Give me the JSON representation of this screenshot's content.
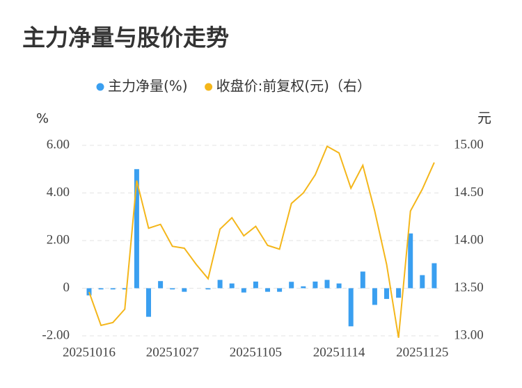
{
  "chart_data": {
    "type": "bar-line",
    "title": "主力净量与股价走势",
    "y_label": "%",
    "y2_label": "元",
    "categories": [
      "20251016",
      null,
      null,
      null,
      null,
      null,
      null,
      "20251027",
      null,
      null,
      null,
      null,
      null,
      null,
      "20251105",
      null,
      null,
      null,
      null,
      null,
      null,
      "20251114",
      null,
      null,
      null,
      null,
      null,
      null,
      "20251125",
      null
    ],
    "series": [
      {
        "name": "主力净量(%)",
        "color": "#3a9ff0",
        "kind": "bar",
        "values": [
          -0.3,
          -0.05,
          -0.05,
          -0.05,
          5.0,
          -1.2,
          0.3,
          -0.05,
          -0.15,
          0,
          -0.05,
          0.35,
          0.2,
          -0.18,
          0.28,
          -0.15,
          -0.15,
          0.27,
          0.08,
          0.28,
          0.35,
          0.2,
          -1.6,
          0.7,
          -0.7,
          -0.45,
          -0.4,
          2.3,
          0.55,
          1.05
        ]
      },
      {
        "name": "收盘价:前复权(元)（右）",
        "color": "#f4b61a",
        "kind": "line",
        "axis": "y2",
        "values": [
          13.46,
          13.11,
          13.14,
          13.28,
          14.63,
          14.13,
          14.17,
          13.94,
          13.92,
          13.75,
          13.6,
          14.12,
          14.24,
          14.05,
          14.15,
          13.95,
          13.91,
          14.39,
          14.5,
          14.69,
          14.99,
          14.92,
          14.55,
          14.79,
          14.31,
          13.75,
          12.98,
          14.31,
          14.54,
          14.82
        ]
      }
    ],
    "ylim": [
      -2,
      6
    ],
    "yticks": [
      {
        "value": 6,
        "label": "6.00"
      },
      {
        "value": 4,
        "label": "4.00"
      },
      {
        "value": 2,
        "label": "2.00"
      },
      0,
      {
        "value": -2,
        "label": "-2.00"
      }
    ],
    "y2lim": [
      13,
      15
    ],
    "y2ticks": [
      {
        "value": 15,
        "label": "15.00"
      },
      {
        "value": 14.5,
        "label": "14.50"
      },
      {
        "value": 14,
        "label": "14.00"
      },
      {
        "value": 13.5,
        "label": "13.50"
      },
      {
        "value": 13,
        "label": "13.00"
      }
    ],
    "grid": true
  }
}
